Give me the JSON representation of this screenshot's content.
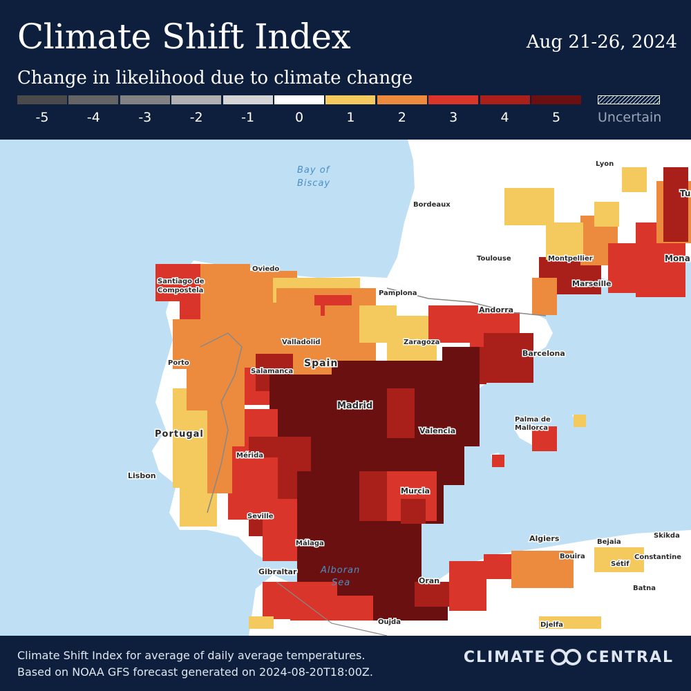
{
  "header": {
    "title": "Climate Shift Index",
    "date": "Aug 21-26, 2024",
    "subtitle": "Change in likelihood due to climate change"
  },
  "legend": {
    "items": [
      {
        "label": "-5",
        "color": "#4a4a4a"
      },
      {
        "label": "-4",
        "color": "#646464"
      },
      {
        "label": "-3",
        "color": "#828282"
      },
      {
        "label": "-2",
        "color": "#b0b0b0"
      },
      {
        "label": "-1",
        "color": "#d4d4d4"
      },
      {
        "label": "0",
        "color": "#ffffff"
      },
      {
        "label": "1",
        "color": "#f4c95d"
      },
      {
        "label": "2",
        "color": "#ec8a3e"
      },
      {
        "label": "3",
        "color": "#d9352a"
      },
      {
        "label": "4",
        "color": "#a91f1a"
      },
      {
        "label": "5",
        "color": "#6b1010"
      }
    ],
    "uncertain_label": "Uncertain"
  },
  "map": {
    "water_color": "#bfe0f4",
    "land_color": "#ffffff",
    "seas": [
      "Bay of",
      "Biscay",
      "Alboran",
      "Sea"
    ],
    "cities": [
      "Lyon",
      "Bordeaux",
      "Toulouse",
      "Montpellier",
      "Marseille",
      "Oviedo",
      "Santiago de",
      "Compostela",
      "Pamplona",
      "Andorra",
      "Valladolid",
      "Zaragoza",
      "Barcelona",
      "Porto",
      "Salamanca",
      "Madrid",
      "Valencia",
      "Palma de",
      "Mallorca",
      "Mérida",
      "Lisbon",
      "Murcia",
      "Seville",
      "Málaga",
      "Gibraltar",
      "Algiers",
      "Bejaia",
      "Skikda",
      "Bouira",
      "Sétif",
      "Constantine",
      "Batna",
      "Oran",
      "Oujda",
      "Djelfa",
      "Tu",
      "Mona"
    ],
    "countries": [
      "Spain",
      "Portugal"
    ]
  },
  "footer": {
    "line1": "Climate Shift Index for average of daily average temperatures.",
    "line2": "Based on NOAA GFS forecast generated on 2024-08-20T18:00Z.",
    "brand_left": "CLIMATE",
    "brand_right": "CENTRAL"
  }
}
